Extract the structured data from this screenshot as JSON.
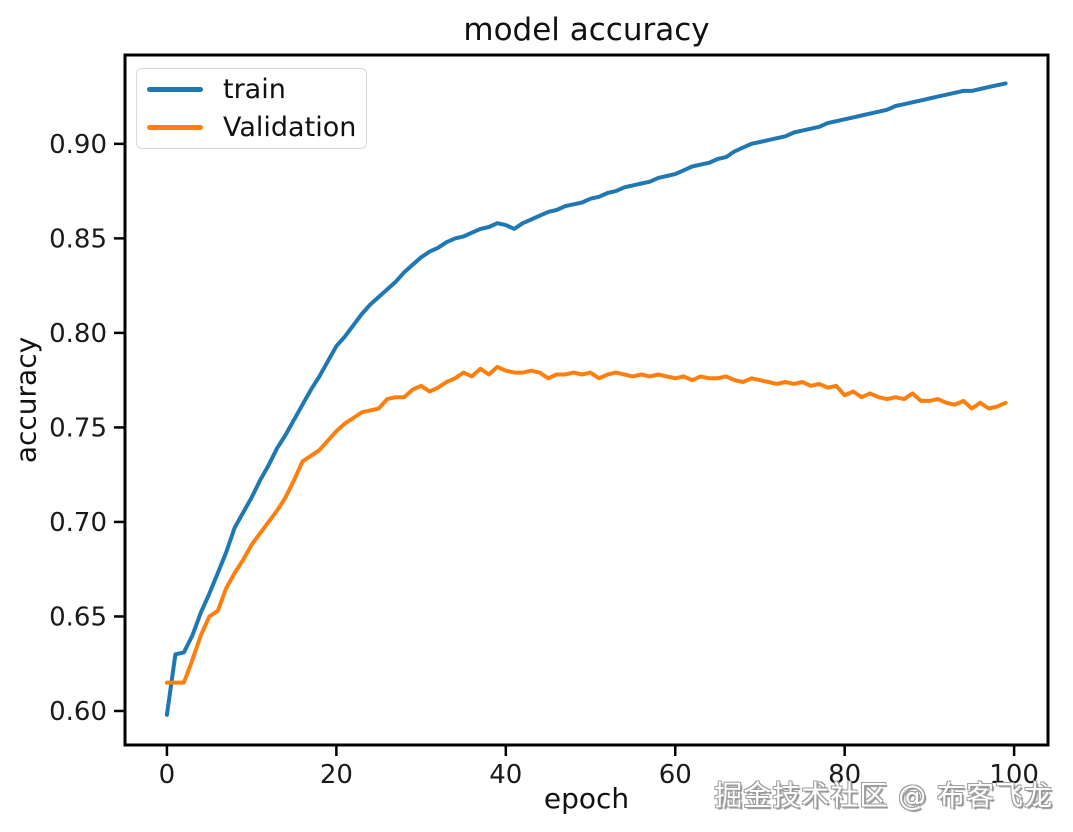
{
  "figure": {
    "title": "model accuracy",
    "xlabel": "epoch",
    "ylabel": "accuracy",
    "watermark": "掘金技术社区 @ 布客飞龙"
  },
  "colors": {
    "train_line": "#1f77b4",
    "validation_line": "#ff7f0e",
    "spine": "#000000",
    "tick_label": "#1a1a1a"
  },
  "legend": {
    "items": [
      {
        "label": "train",
        "color": "#1f77b4"
      },
      {
        "label": "Validation",
        "color": "#ff7f0e"
      }
    ]
  },
  "chart_data": {
    "type": "line",
    "title": "model accuracy",
    "xlabel": "epoch",
    "ylabel": "accuracy",
    "grid": false,
    "legend_position": "upper left",
    "xlim": [
      -4.95,
      104.0
    ],
    "ylim": [
      0.582,
      0.947
    ],
    "xticks": [
      0,
      20,
      40,
      60,
      80,
      100
    ],
    "xtick_labels": [
      "0",
      "20",
      "40",
      "60",
      "80",
      "100"
    ],
    "yticks": [
      0.6,
      0.65,
      0.7,
      0.75,
      0.8,
      0.85,
      0.9
    ],
    "ytick_labels": [
      "0.60",
      "0.65",
      "0.70",
      "0.75",
      "0.80",
      "0.85",
      "0.90"
    ],
    "x": [
      0,
      1,
      2,
      3,
      4,
      5,
      6,
      7,
      8,
      9,
      10,
      11,
      12,
      13,
      14,
      15,
      16,
      17,
      18,
      19,
      20,
      21,
      22,
      23,
      24,
      25,
      26,
      27,
      28,
      29,
      30,
      31,
      32,
      33,
      34,
      35,
      36,
      37,
      38,
      39,
      40,
      41,
      42,
      43,
      44,
      45,
      46,
      47,
      48,
      49,
      50,
      51,
      52,
      53,
      54,
      55,
      56,
      57,
      58,
      59,
      60,
      61,
      62,
      63,
      64,
      65,
      66,
      67,
      68,
      69,
      70,
      71,
      72,
      73,
      74,
      75,
      76,
      77,
      78,
      79,
      80,
      81,
      82,
      83,
      84,
      85,
      86,
      87,
      88,
      89,
      90,
      91,
      92,
      93,
      94,
      95,
      96,
      97,
      98,
      99
    ],
    "series": [
      {
        "name": "train",
        "color": "#1f77b4",
        "values": [
          0.598,
          0.63,
          0.631,
          0.64,
          0.652,
          0.662,
          0.673,
          0.684,
          0.697,
          0.705,
          0.713,
          0.722,
          0.73,
          0.739,
          0.746,
          0.754,
          0.762,
          0.77,
          0.777,
          0.785,
          0.793,
          0.798,
          0.804,
          0.81,
          0.815,
          0.819,
          0.823,
          0.827,
          0.832,
          0.836,
          0.84,
          0.843,
          0.845,
          0.848,
          0.85,
          0.851,
          0.853,
          0.855,
          0.856,
          0.858,
          0.857,
          0.855,
          0.858,
          0.86,
          0.862,
          0.864,
          0.865,
          0.867,
          0.868,
          0.869,
          0.871,
          0.872,
          0.874,
          0.875,
          0.877,
          0.878,
          0.879,
          0.88,
          0.882,
          0.883,
          0.884,
          0.886,
          0.888,
          0.889,
          0.89,
          0.892,
          0.893,
          0.896,
          0.898,
          0.9,
          0.901,
          0.902,
          0.903,
          0.904,
          0.906,
          0.907,
          0.908,
          0.909,
          0.911,
          0.912,
          0.913,
          0.914,
          0.915,
          0.916,
          0.917,
          0.918,
          0.92,
          0.921,
          0.922,
          0.923,
          0.924,
          0.925,
          0.926,
          0.927,
          0.928,
          0.928,
          0.929,
          0.93,
          0.931,
          0.932
        ]
      },
      {
        "name": "Validation",
        "color": "#ff7f0e",
        "values": [
          0.615,
          0.615,
          0.615,
          0.627,
          0.64,
          0.65,
          0.653,
          0.665,
          0.673,
          0.68,
          0.688,
          0.694,
          0.7,
          0.706,
          0.713,
          0.722,
          0.732,
          0.735,
          0.738,
          0.743,
          0.748,
          0.752,
          0.755,
          0.758,
          0.759,
          0.76,
          0.765,
          0.766,
          0.766,
          0.77,
          0.772,
          0.769,
          0.771,
          0.774,
          0.776,
          0.779,
          0.777,
          0.781,
          0.778,
          0.782,
          0.78,
          0.779,
          0.779,
          0.78,
          0.779,
          0.776,
          0.778,
          0.778,
          0.779,
          0.778,
          0.779,
          0.776,
          0.778,
          0.779,
          0.778,
          0.777,
          0.778,
          0.777,
          0.778,
          0.777,
          0.776,
          0.777,
          0.775,
          0.777,
          0.776,
          0.776,
          0.777,
          0.775,
          0.774,
          0.776,
          0.775,
          0.774,
          0.773,
          0.774,
          0.773,
          0.774,
          0.772,
          0.773,
          0.771,
          0.772,
          0.767,
          0.769,
          0.766,
          0.768,
          0.766,
          0.765,
          0.766,
          0.765,
          0.768,
          0.764,
          0.764,
          0.765,
          0.763,
          0.762,
          0.764,
          0.76,
          0.763,
          0.76,
          0.761,
          0.763
        ]
      }
    ]
  }
}
